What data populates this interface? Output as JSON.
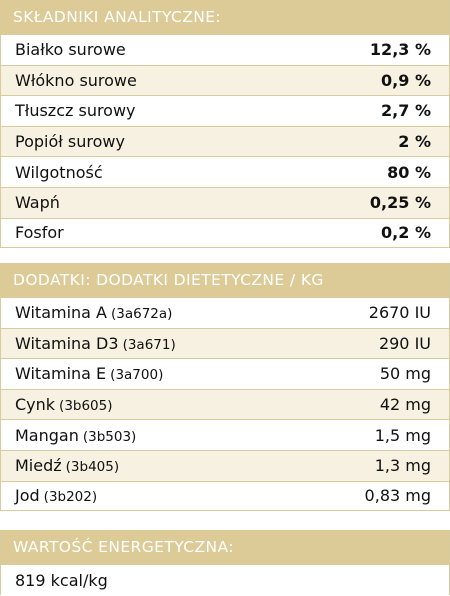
{
  "analytical": {
    "header": "SKŁADNIKI ANALITYCZNE:",
    "rows": [
      {
        "label": "Białko surowe",
        "value": "12,3 %"
      },
      {
        "label": "Włókno surowe",
        "value": "0,9 %"
      },
      {
        "label": "Tłuszcz surowy",
        "value": "2,7 %"
      },
      {
        "label": "Popiół surowy",
        "value": "2 %"
      },
      {
        "label": "Wilgotność",
        "value": "80 %"
      },
      {
        "label": "Wapń",
        "value": "0,25 %"
      },
      {
        "label": "Fosfor",
        "value": "0,2 %"
      }
    ]
  },
  "additives": {
    "header": "DODATKI: DODATKI DIETETYCZNE / KG",
    "rows": [
      {
        "label": "Witamina A",
        "code": "(3a672a)",
        "value": "2670 IU"
      },
      {
        "label": "Witamina D3",
        "code": "(3a671)",
        "value": "290 IU"
      },
      {
        "label": "Witamina E",
        "code": "(3a700)",
        "value": "50 mg"
      },
      {
        "label": "Cynk",
        "code": "(3b605)",
        "value": "42 mg"
      },
      {
        "label": "Mangan",
        "code": "(3b503)",
        "value": "1,5 mg"
      },
      {
        "label": "Miedź",
        "code": "(3b405)",
        "value": "1,3 mg"
      },
      {
        "label": "Jod",
        "code": "(3b202)",
        "value": "0,83 mg"
      }
    ]
  },
  "energy": {
    "header": "WARTOŚĆ ENERGETYCZNA:",
    "value": "819 kcal/kg"
  }
}
